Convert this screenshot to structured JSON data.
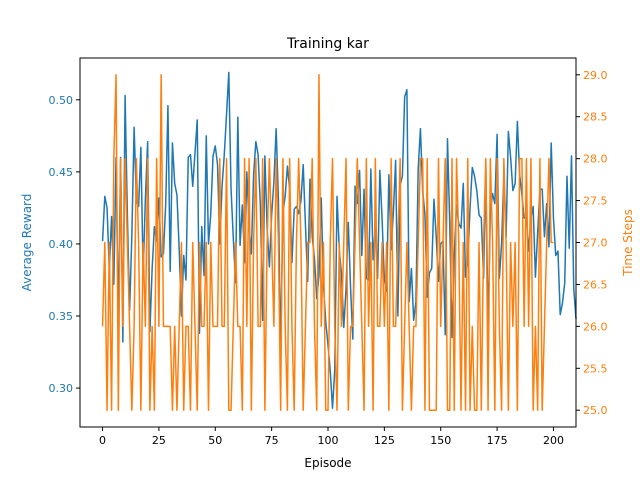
{
  "chart_data": {
    "type": "line",
    "title": "Training kar",
    "xlabel": "Episode",
    "ylabel_left": "Average Reward",
    "ylabel_right": "Time Steps",
    "xlim": [
      -10,
      210
    ],
    "ylim_left": [
      0.273,
      0.529
    ],
    "ylim_right": [
      24.8,
      29.2
    ],
    "x_ticks": [
      0,
      25,
      50,
      75,
      100,
      125,
      150,
      175,
      200
    ],
    "y_ticks_left": [
      0.3,
      0.35,
      0.4,
      0.45,
      0.5
    ],
    "y_ticks_right": [
      25.0,
      25.5,
      26.0,
      26.5,
      27.0,
      27.5,
      28.0,
      28.5,
      29.0
    ],
    "grid": false,
    "colors": {
      "reward": "#1f77b4",
      "steps": "#ff7f0e",
      "axes": "#000000"
    },
    "series": [
      {
        "axis": "left",
        "values": [
          0.402,
          0.433,
          0.425,
          0.382,
          0.419,
          0.372,
          0.46,
          0.344,
          0.46,
          0.332,
          0.503,
          0.421,
          0.354,
          0.406,
          0.481,
          0.43,
          0.426,
          0.467,
          0.38,
          0.431,
          0.471,
          0.339,
          0.383,
          0.412,
          0.402,
          0.432,
          0.391,
          0.393,
          0.427,
          0.496,
          0.381,
          0.47,
          0.442,
          0.434,
          0.396,
          0.35,
          0.392,
          0.375,
          0.46,
          0.462,
          0.44,
          0.463,
          0.486,
          0.338,
          0.412,
          0.378,
          0.475,
          0.4,
          0.421,
          0.461,
          0.468,
          0.455,
          0.4,
          0.44,
          0.462,
          0.49,
          0.519,
          0.438,
          0.404,
          0.373,
          0.488,
          0.399,
          0.427,
          0.387,
          0.45,
          0.412,
          0.393,
          0.448,
          0.471,
          0.462,
          0.427,
          0.347,
          0.461,
          0.411,
          0.384,
          0.42,
          0.443,
          0.48,
          0.431,
          0.326,
          0.422,
          0.433,
          0.454,
          0.438,
          0.387,
          0.424,
          0.426,
          0.421,
          0.43,
          0.455,
          0.413,
          0.374,
          0.445,
          0.405,
          0.39,
          0.362,
          0.378,
          0.432,
          0.371,
          0.346,
          0.33,
          0.312,
          0.286,
          0.313,
          0.433,
          0.396,
          0.379,
          0.342,
          0.369,
          0.415,
          0.37,
          0.334,
          0.44,
          0.428,
          0.451,
          0.392,
          0.438,
          0.376,
          0.375,
          0.452,
          0.389,
          0.412,
          0.376,
          0.451,
          0.417,
          0.375,
          0.367,
          0.448,
          0.396,
          0.422,
          0.458,
          0.35,
          0.441,
          0.447,
          0.502,
          0.507,
          0.36,
          0.383,
          0.347,
          0.36,
          0.452,
          0.48,
          0.437,
          0.42,
          0.363,
          0.38,
          0.383,
          0.431,
          0.405,
          0.374,
          0.4,
          0.402,
          0.337,
          0.473,
          0.414,
          0.335,
          0.392,
          0.427,
          0.414,
          0.411,
          0.442,
          0.377,
          0.388,
          0.425,
          0.453,
          0.447,
          0.437,
          0.42,
          0.418,
          0.376,
          0.454,
          0.34,
          0.422,
          0.435,
          0.428,
          0.476,
          0.376,
          0.4,
          0.448,
          0.405,
          0.478,
          0.46,
          0.437,
          0.442,
          0.485,
          0.448,
          0.434,
          0.418,
          0.418,
          0.395,
          0.418,
          0.426,
          0.377,
          0.408,
          0.438,
          0.438,
          0.405,
          0.428,
          0.398,
          0.47,
          0.418,
          0.392,
          0.395,
          0.351,
          0.359,
          0.373,
          0.447,
          0.397,
          0.461,
          0.369,
          0.348
        ],
        "note_length": 201
      },
      {
        "axis": "right",
        "values": [
          26,
          27,
          25,
          27,
          25,
          28,
          29,
          25,
          28,
          26,
          28,
          27,
          26,
          25,
          26,
          28,
          27,
          25,
          27,
          26,
          28,
          25,
          26,
          25,
          28,
          26,
          29,
          26,
          26,
          26,
          26,
          25,
          26,
          25,
          26,
          27,
          25,
          26,
          26,
          25,
          27,
          26,
          25,
          27,
          26,
          26,
          27,
          25,
          27,
          26,
          26,
          26,
          28,
          26,
          26,
          28,
          25,
          25,
          26,
          27,
          26,
          26,
          25,
          28,
          26,
          28,
          25,
          27,
          28,
          26,
          26,
          28,
          25,
          27,
          28,
          27,
          26,
          28,
          27,
          25,
          28,
          26,
          25,
          28,
          26,
          25,
          27,
          28,
          27,
          25,
          26,
          27,
          27,
          28,
          26,
          25,
          29,
          26,
          27,
          25,
          25,
          27,
          28,
          26,
          25,
          27,
          26,
          27,
          28,
          25,
          26,
          26,
          27,
          28,
          27,
          26,
          25,
          28,
          26,
          27,
          25,
          28,
          26,
          26,
          27,
          26,
          27,
          25,
          28,
          26,
          26,
          27,
          28,
          25,
          26,
          27,
          26,
          25,
          26,
          26,
          27,
          28,
          28,
          25,
          28,
          25,
          25,
          25,
          25,
          28,
          26,
          27,
          28,
          25,
          25,
          28,
          25,
          28,
          27,
          25,
          27,
          25,
          28,
          25,
          26,
          25,
          25,
          27,
          25,
          27,
          28,
          25,
          28,
          27,
          25,
          28,
          26,
          25,
          28,
          27,
          25,
          27,
          26,
          27,
          25,
          28,
          28,
          26,
          28,
          26,
          28,
          25,
          26,
          25,
          28,
          25,
          26,
          27,
          28,
          27,
          27
        ],
        "note_length": 201
      }
    ]
  }
}
